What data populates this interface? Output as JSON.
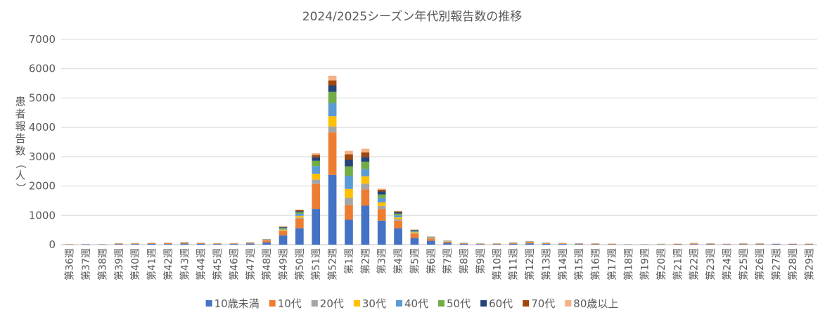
{
  "chart_data": {
    "type": "bar",
    "stacked": true,
    "title": "2024/2025シーズン年代別報告数の推移",
    "ylabel": "患者報告数（人）",
    "xlabel": "",
    "ylim": [
      0,
      7000
    ],
    "yticks": [
      0,
      1000,
      2000,
      3000,
      4000,
      5000,
      6000,
      7000
    ],
    "grid": true,
    "legend": "bottom",
    "categories": [
      "第36週",
      "第37週",
      "第38週",
      "第39週",
      "第40週",
      "第41週",
      "第42週",
      "第43週",
      "第44週",
      "第45週",
      "第46週",
      "第47週",
      "第48週",
      "第49週",
      "第50週",
      "第51週",
      "第52週",
      "第1週",
      "第2週",
      "第3週",
      "第4週",
      "第5週",
      "第6週",
      "第7週",
      "第8週",
      "第9週",
      "第10週",
      "第11週",
      "第12週",
      "第13週",
      "第14週",
      "第15週",
      "第16週",
      "第17週",
      "第18週",
      "第19週",
      "第20週",
      "第21週",
      "第22週",
      "第23週",
      "第24週",
      "第25週",
      "第26週",
      "第27週",
      "第28週",
      "第29週"
    ],
    "series": [
      {
        "name": "10歳未満",
        "color": "#4472C4",
        "values": [
          5,
          12,
          8,
          18,
          20,
          25,
          20,
          35,
          28,
          20,
          22,
          40,
          80,
          320,
          560,
          1220,
          2380,
          850,
          1330,
          820,
          560,
          230,
          130,
          60,
          25,
          15,
          15,
          30,
          45,
          28,
          22,
          18,
          15,
          8,
          5,
          5,
          8,
          10,
          15,
          12,
          10,
          15,
          15,
          20,
          12,
          10
        ]
      },
      {
        "name": "10代",
        "color": "#ED7D31",
        "values": [
          10,
          5,
          5,
          20,
          22,
          25,
          28,
          30,
          25,
          20,
          18,
          25,
          70,
          150,
          330,
          850,
          1450,
          500,
          550,
          400,
          260,
          150,
          80,
          40,
          20,
          12,
          15,
          25,
          40,
          22,
          20,
          15,
          15,
          18,
          5,
          5,
          10,
          15,
          25,
          18,
          10,
          15,
          15,
          5,
          12,
          15
        ]
      },
      {
        "name": "20代",
        "color": "#A5A5A5",
        "values": [
          1,
          0,
          1,
          2,
          2,
          3,
          3,
          4,
          3,
          2,
          2,
          3,
          5,
          15,
          35,
          150,
          200,
          250,
          200,
          100,
          50,
          20,
          10,
          6,
          4,
          3,
          3,
          4,
          5,
          4,
          3,
          3,
          3,
          2,
          1,
          1,
          2,
          2,
          3,
          3,
          2,
          3,
          3,
          2,
          2,
          2
        ]
      },
      {
        "name": "30代",
        "color": "#FFC000",
        "values": [
          1,
          0,
          1,
          2,
          2,
          3,
          3,
          4,
          3,
          2,
          2,
          3,
          8,
          30,
          60,
          200,
          350,
          300,
          250,
          120,
          60,
          25,
          12,
          8,
          5,
          3,
          3,
          5,
          6,
          4,
          3,
          3,
          3,
          2,
          1,
          1,
          2,
          2,
          3,
          3,
          2,
          3,
          3,
          2,
          2,
          2
        ]
      },
      {
        "name": "40代",
        "color": "#5B9BD5",
        "values": [
          1,
          1,
          1,
          3,
          3,
          4,
          4,
          5,
          4,
          3,
          3,
          4,
          10,
          35,
          70,
          260,
          450,
          450,
          250,
          150,
          70,
          30,
          15,
          8,
          5,
          3,
          3,
          5,
          7,
          5,
          4,
          3,
          3,
          2,
          1,
          1,
          2,
          2,
          3,
          3,
          2,
          3,
          3,
          2,
          2,
          2
        ]
      },
      {
        "name": "50代",
        "color": "#70AD47",
        "values": [
          1,
          0,
          1,
          2,
          2,
          3,
          3,
          3,
          3,
          2,
          2,
          3,
          6,
          25,
          50,
          180,
          380,
          320,
          250,
          120,
          60,
          25,
          12,
          6,
          4,
          3,
          3,
          4,
          5,
          4,
          3,
          3,
          3,
          2,
          1,
          1,
          2,
          2,
          3,
          3,
          2,
          3,
          3,
          2,
          2,
          2
        ]
      },
      {
        "name": "60代",
        "color": "#264478",
        "values": [
          1,
          0,
          1,
          1,
          2,
          2,
          2,
          3,
          2,
          2,
          2,
          2,
          5,
          20,
          40,
          120,
          220,
          230,
          160,
          100,
          45,
          18,
          8,
          5,
          3,
          2,
          2,
          3,
          4,
          3,
          2,
          2,
          2,
          1,
          1,
          1,
          1,
          1,
          2,
          2,
          1,
          2,
          2,
          1,
          1,
          1
        ]
      },
      {
        "name": "70代",
        "color": "#9E480E",
        "values": [
          0,
          0,
          0,
          1,
          1,
          2,
          2,
          2,
          2,
          1,
          1,
          2,
          4,
          15,
          30,
          80,
          170,
          180,
          160,
          60,
          30,
          12,
          6,
          4,
          2,
          2,
          2,
          2,
          3,
          2,
          2,
          2,
          2,
          1,
          1,
          1,
          1,
          1,
          2,
          2,
          1,
          2,
          2,
          1,
          1,
          1
        ]
      },
      {
        "name": "80歳以上",
        "color": "#F4B183",
        "values": [
          0,
          0,
          0,
          1,
          1,
          1,
          1,
          2,
          1,
          1,
          1,
          1,
          2,
          10,
          20,
          60,
          160,
          120,
          120,
          40,
          20,
          8,
          4,
          3,
          2,
          1,
          1,
          2,
          2,
          2,
          1,
          1,
          1,
          1,
          0,
          0,
          1,
          1,
          1,
          1,
          1,
          1,
          1,
          1,
          1,
          1
        ]
      }
    ]
  }
}
